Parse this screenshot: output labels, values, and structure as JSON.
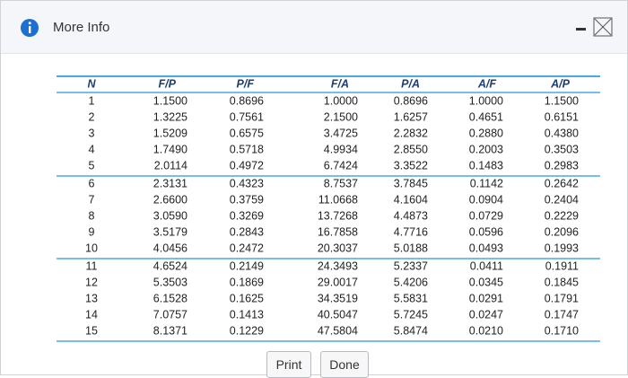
{
  "header": {
    "title": "More Info"
  },
  "table": {
    "columns": [
      "N",
      "F/P",
      "P/F",
      "F/A",
      "P/A",
      "A/F",
      "A/P"
    ],
    "rows": [
      [
        "1",
        "1.1500",
        "0.8696",
        "1.0000",
        "0.8696",
        "1.0000",
        "1.1500"
      ],
      [
        "2",
        "1.3225",
        "0.7561",
        "2.1500",
        "1.6257",
        "0.4651",
        "0.6151"
      ],
      [
        "3",
        "1.5209",
        "0.6575",
        "3.4725",
        "2.2832",
        "0.2880",
        "0.4380"
      ],
      [
        "4",
        "1.7490",
        "0.5718",
        "4.9934",
        "2.8550",
        "0.2003",
        "0.3503"
      ],
      [
        "5",
        "2.0114",
        "0.4972",
        "6.7424",
        "3.3522",
        "0.1483",
        "0.2983"
      ],
      [
        "6",
        "2.3131",
        "0.4323",
        "8.7537",
        "3.7845",
        "0.1142",
        "0.2642"
      ],
      [
        "7",
        "2.6600",
        "0.3759",
        "11.0668",
        "4.1604",
        "0.0904",
        "0.2404"
      ],
      [
        "8",
        "3.0590",
        "0.3269",
        "13.7268",
        "4.4873",
        "0.0729",
        "0.2229"
      ],
      [
        "9",
        "3.5179",
        "0.2843",
        "16.7858",
        "4.7716",
        "0.0596",
        "0.2096"
      ],
      [
        "10",
        "4.0456",
        "0.2472",
        "20.3037",
        "5.0188",
        "0.0493",
        "0.1993"
      ],
      [
        "11",
        "4.6524",
        "0.2149",
        "24.3493",
        "5.2337",
        "0.0411",
        "0.1911"
      ],
      [
        "12",
        "5.3503",
        "0.1869",
        "29.0017",
        "5.4206",
        "0.0345",
        "0.1845"
      ],
      [
        "13",
        "6.1528",
        "0.1625",
        "34.3519",
        "5.5831",
        "0.0291",
        "0.1791"
      ],
      [
        "14",
        "7.0757",
        "0.1413",
        "40.5047",
        "5.7245",
        "0.0247",
        "0.1747"
      ],
      [
        "15",
        "8.1371",
        "0.1229",
        "47.5804",
        "5.8474",
        "0.0210",
        "0.1710"
      ]
    ]
  },
  "buttons": [
    "Print",
    "Done"
  ]
}
